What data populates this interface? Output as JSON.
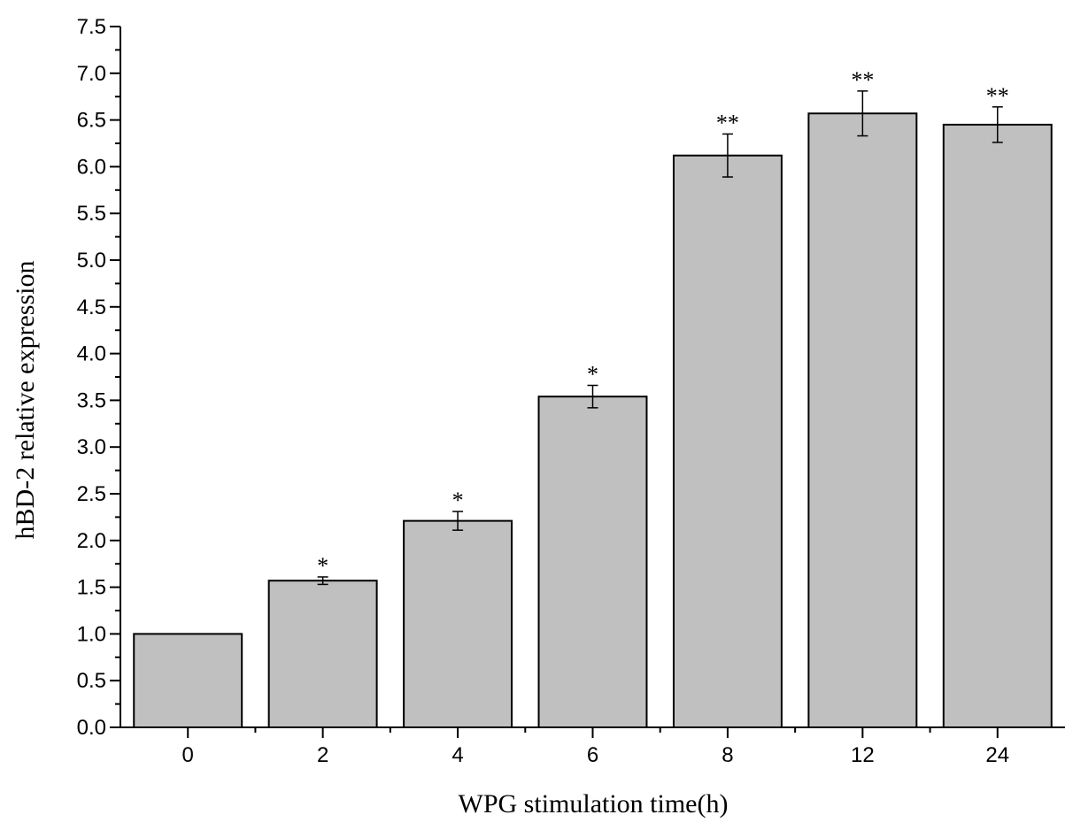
{
  "chart_data": {
    "type": "bar",
    "xlabel": "WPG stimulation time(h)",
    "ylabel": "hBD-2 relative expression",
    "ylim": [
      0,
      7.5
    ],
    "ytick_step": 0.5,
    "categories": [
      "0",
      "2",
      "4",
      "6",
      "8",
      "12",
      "24"
    ],
    "values": [
      1.0,
      1.57,
      2.21,
      3.54,
      6.12,
      6.57,
      6.45
    ],
    "errors": [
      0.0,
      0.04,
      0.1,
      0.12,
      0.23,
      0.24,
      0.19
    ],
    "annotations": [
      "",
      "*",
      "*",
      "*",
      "**",
      "**",
      "**"
    ],
    "bar_color": "#c0c0c0",
    "grid": false,
    "legend": "none"
  }
}
